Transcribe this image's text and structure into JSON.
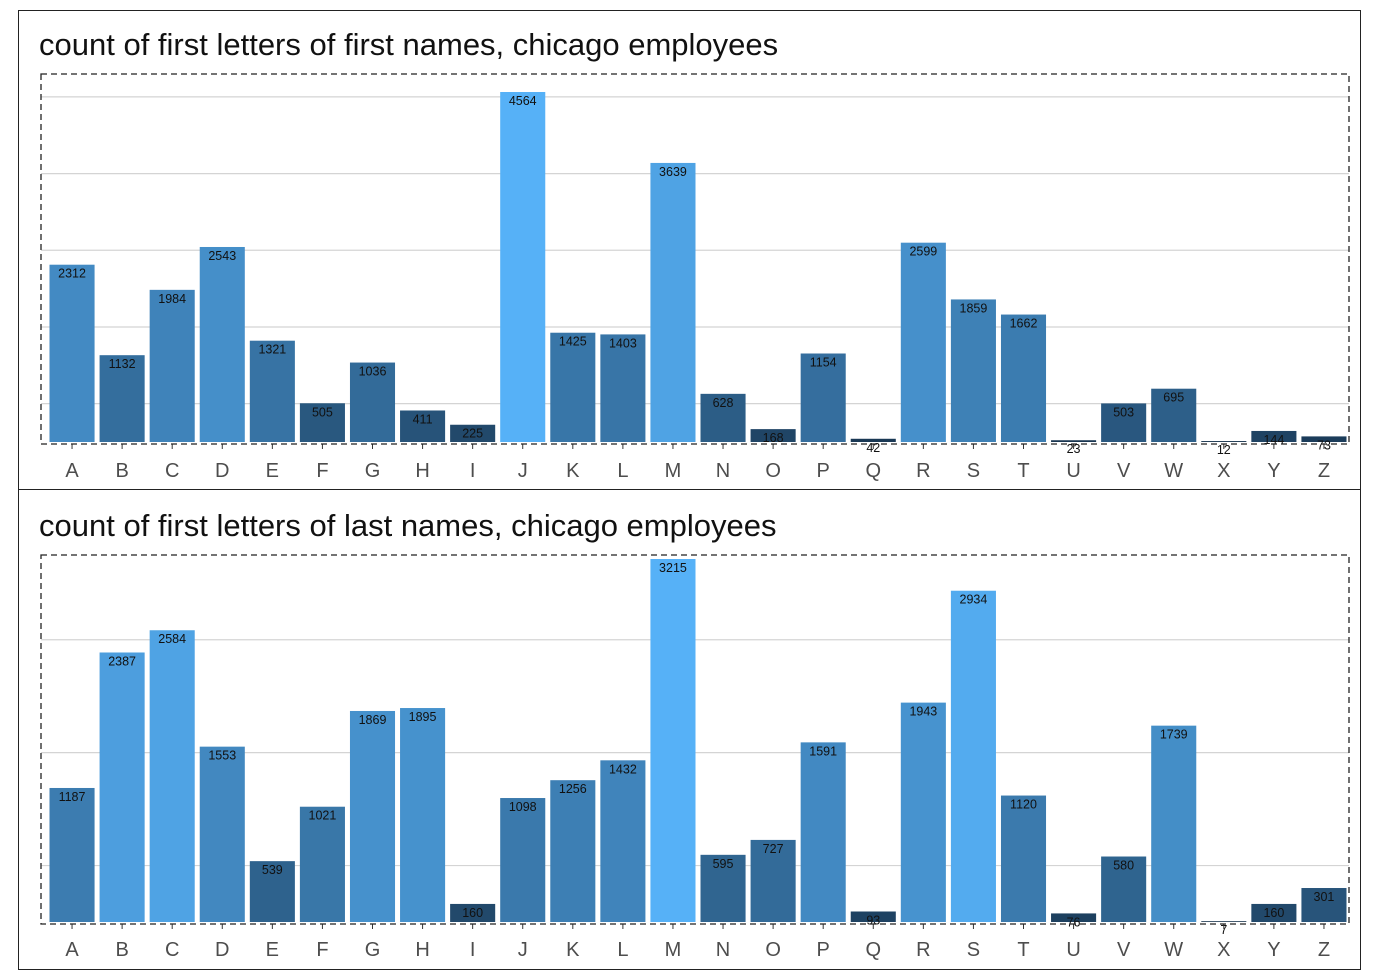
{
  "chart_data": [
    {
      "type": "bar",
      "title": "count of first letters of first names, chicago employees",
      "xlabel": "",
      "ylabel": "",
      "categories": [
        "A",
        "B",
        "C",
        "D",
        "E",
        "F",
        "G",
        "H",
        "I",
        "J",
        "K",
        "L",
        "M",
        "N",
        "O",
        "P",
        "Q",
        "R",
        "S",
        "T",
        "U",
        "V",
        "W",
        "X",
        "Y",
        "Z"
      ],
      "values": [
        2312,
        1132,
        1984,
        2543,
        1321,
        505,
        1036,
        411,
        225,
        4564,
        1425,
        1403,
        3639,
        628,
        168,
        1154,
        42,
        2599,
        1859,
        1662,
        23,
        503,
        695,
        12,
        144,
        73
      ],
      "ylim": [
        0,
        4564
      ],
      "grid_values": [
        500,
        1500,
        2500,
        3500,
        4500
      ],
      "colors": {
        "low": "#132b43",
        "high": "#56b1f7"
      }
    },
    {
      "type": "bar",
      "title": "count of first letters of last names, chicago employees",
      "xlabel": "",
      "ylabel": "",
      "categories": [
        "A",
        "B",
        "C",
        "D",
        "E",
        "F",
        "G",
        "H",
        "I",
        "J",
        "K",
        "L",
        "M",
        "N",
        "O",
        "P",
        "Q",
        "R",
        "S",
        "T",
        "U",
        "V",
        "W",
        "X",
        "Y",
        "Z"
      ],
      "values": [
        1187,
        2387,
        2584,
        1553,
        539,
        1021,
        1869,
        1895,
        160,
        1098,
        1256,
        1432,
        3215,
        595,
        727,
        1591,
        93,
        1943,
        2934,
        1120,
        76,
        580,
        1739,
        7,
        160,
        301
      ],
      "ylim": [
        0,
        3215
      ],
      "grid_values": [
        500,
        1500,
        2500
      ],
      "colors": {
        "low": "#132b43",
        "high": "#56b1f7"
      }
    }
  ]
}
